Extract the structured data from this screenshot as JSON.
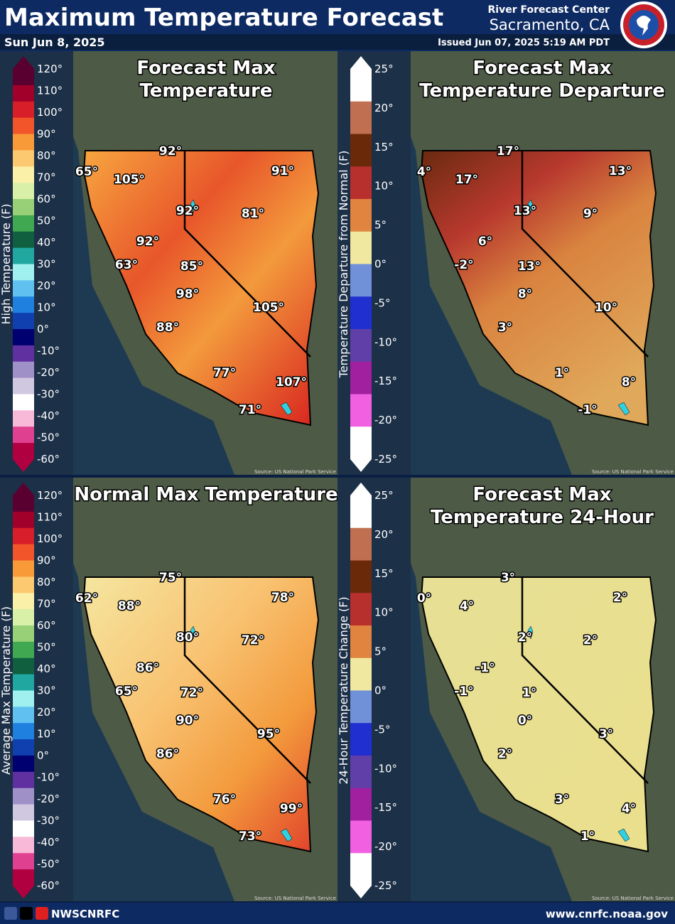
{
  "header": {
    "title": "Maximum Temperature Forecast",
    "date": "Sun Jun 8, 2025",
    "office": "River Forecast Center",
    "location": "Sacramento, CA",
    "issued": "Issued Jun 07, 2025 5:19 AM PDT"
  },
  "panels": [
    {
      "title": [
        "Forecast Max",
        "Temperature"
      ],
      "colorbar_label": "High Temperature (F)",
      "colorbar_ticks": [
        "120°",
        "110°",
        "100°",
        "90°",
        "80°",
        "70°",
        "60°",
        "50°",
        "40°",
        "30°",
        "20°",
        "10°",
        "0°",
        "-10°",
        "-20°",
        "-30°",
        "-40°",
        "-50°",
        "-60°"
      ],
      "labels": [
        "92°",
        "65°",
        "105°",
        "91°",
        "92°",
        "81°",
        "92°",
        "63°",
        "85°",
        "98°",
        "105°",
        "88°",
        "77°",
        "107°",
        "71°"
      ],
      "source": "Source: US National Park Service"
    },
    {
      "title": [
        "Forecast Max",
        "Temperature Departure"
      ],
      "colorbar_label": "Temperature Departure from Normal (F)",
      "colorbar_ticks": [
        "25°",
        "20°",
        "15°",
        "10°",
        "5°",
        "0°",
        "-5°",
        "-10°",
        "-15°",
        "-20°",
        "-25°"
      ],
      "labels": [
        "17°",
        "4°",
        "17°",
        "13°",
        "13°",
        "9°",
        "6°",
        "-2°",
        "13°",
        "8°",
        "10°",
        "3°",
        "1°",
        "8°",
        "-1°"
      ],
      "source": "Source: US National Park Service"
    },
    {
      "title": [
        "Normal Max Temperature"
      ],
      "colorbar_label": "Average Max Temperature (F)",
      "colorbar_ticks": [
        "120°",
        "110°",
        "100°",
        "90°",
        "80°",
        "70°",
        "60°",
        "50°",
        "40°",
        "30°",
        "20°",
        "10°",
        "0°",
        "-10°",
        "-20°",
        "-30°",
        "-40°",
        "-50°",
        "-60°"
      ],
      "labels": [
        "75°",
        "62°",
        "88°",
        "78°",
        "80°",
        "72°",
        "86°",
        "65°",
        "72°",
        "90°",
        "95°",
        "86°",
        "76°",
        "99°",
        "73°"
      ],
      "source": "Source: US National Park Service"
    },
    {
      "title": [
        "Forecast Max",
        "Temperature 24-Hour"
      ],
      "colorbar_label": "24-Hour Temperature Change (F)",
      "colorbar_ticks": [
        "25°",
        "20°",
        "15°",
        "10°",
        "5°",
        "0°",
        "-5°",
        "-10°",
        "-15°",
        "-20°",
        "-25°"
      ],
      "labels": [
        "3°",
        "0°",
        "4°",
        "2°",
        "2°",
        "2°",
        "-1°",
        "-1°",
        "1°",
        "0°",
        "3°",
        "2°",
        "3°",
        "4°",
        "1°"
      ],
      "source": "Source: US National Park Service"
    }
  ],
  "footer": {
    "handle": "NWSCNRFC",
    "url": "www.cnrfc.noaa.gov"
  }
}
